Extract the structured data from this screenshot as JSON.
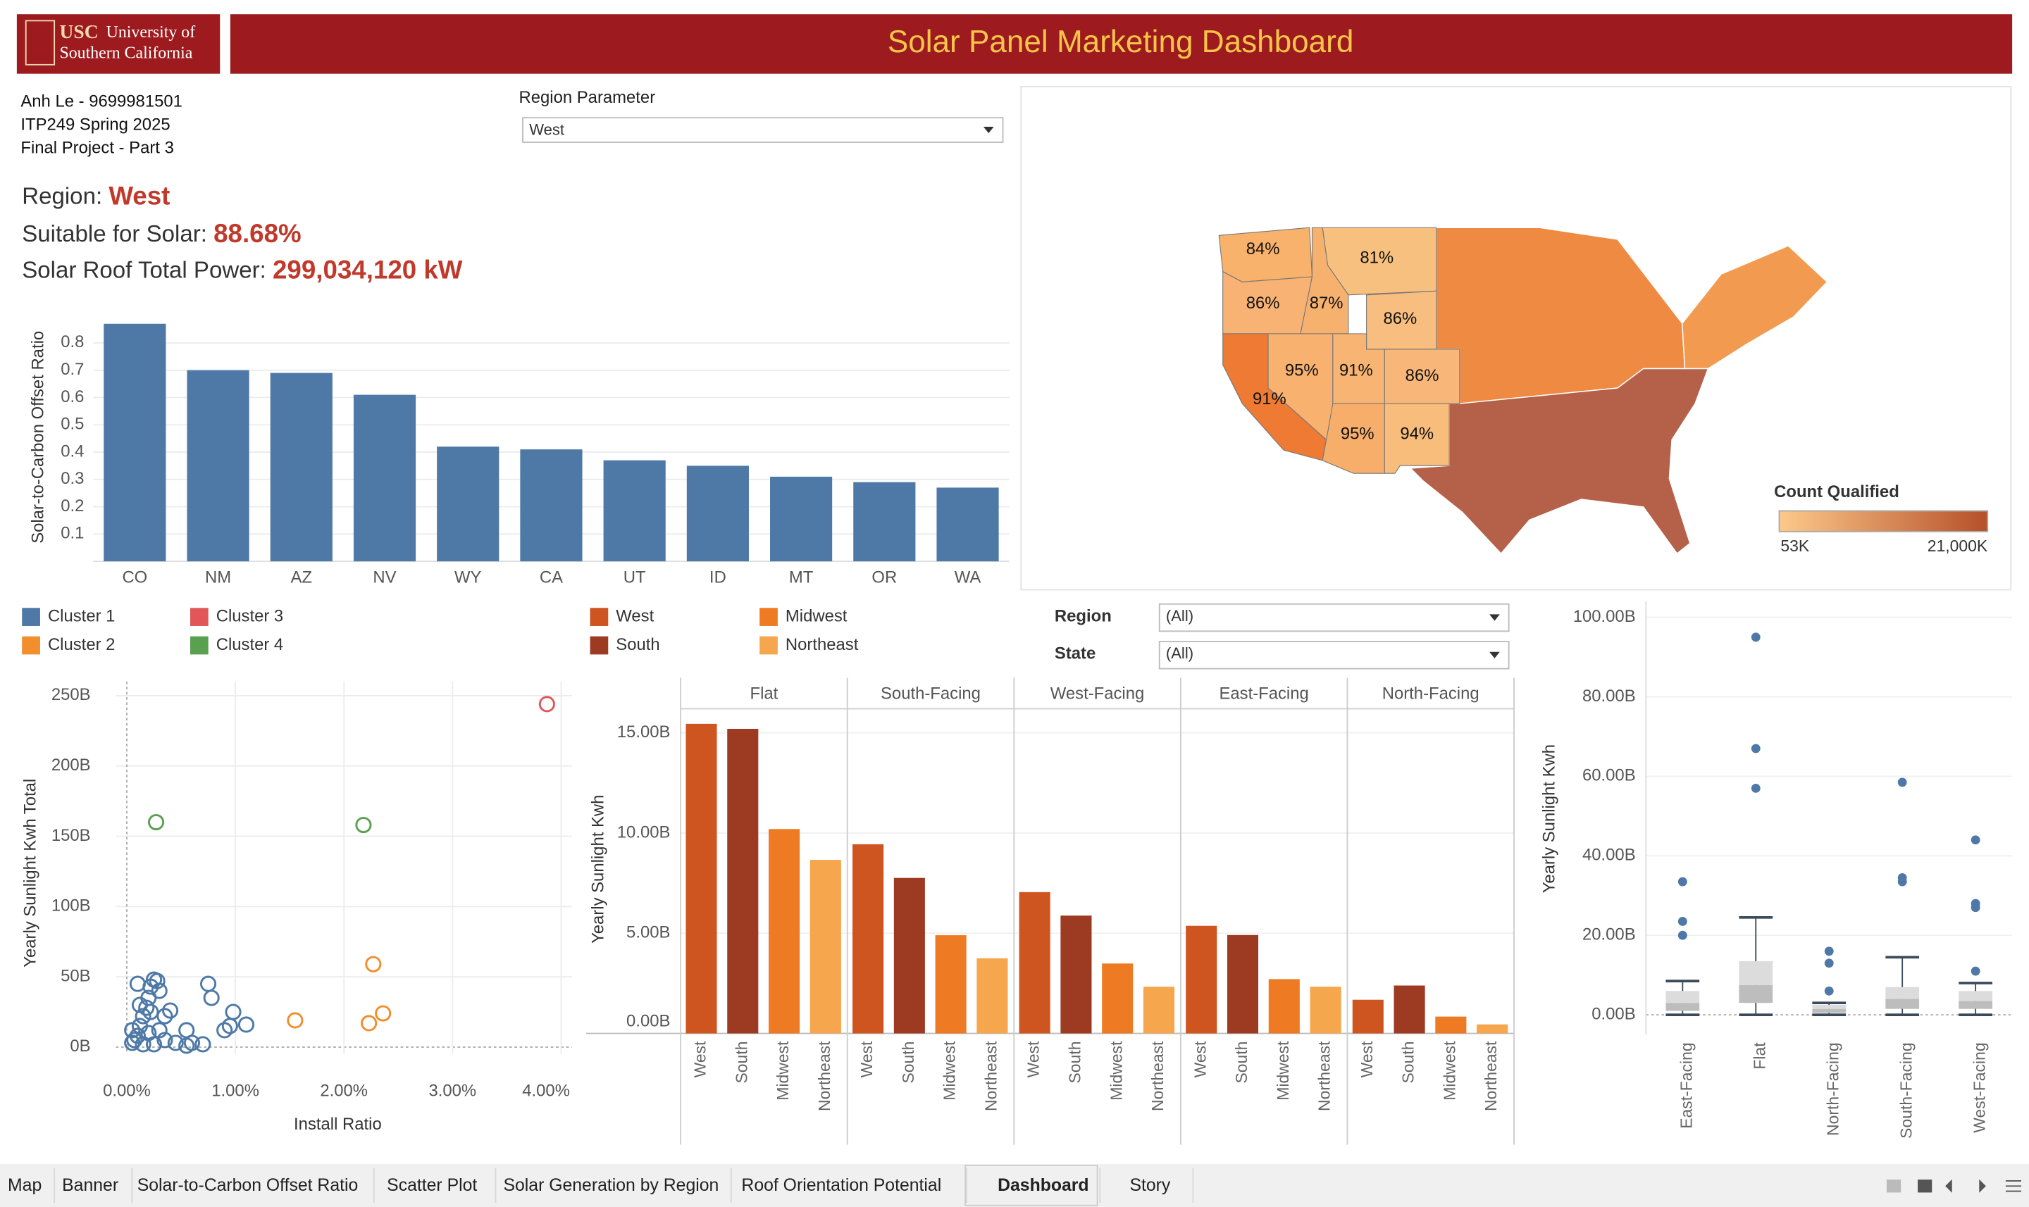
{
  "header": {
    "logo": [
      "USC",
      "University of",
      "Southern California"
    ],
    "title": "Solar Panel Marketing Dashboard"
  },
  "info": [
    "Anh Le - 9699981501",
    "ITP249 Spring 2025",
    "Final Project - Part 3"
  ],
  "parameter": {
    "label": "Region Parameter",
    "value": "West"
  },
  "kpis": [
    {
      "label": "Region:",
      "value": "West"
    },
    {
      "label": "Suitable for Solar:",
      "value": "88.68%"
    },
    {
      "label": "Solar Roof Total Power:",
      "value": "299,034,120 kW"
    }
  ],
  "filters": [
    {
      "label": "Region",
      "value": "(All)"
    },
    {
      "label": "State",
      "value": "(All)"
    }
  ],
  "tabs": [
    "Map",
    "Banner",
    "Solar-to-Carbon Offset Ratio",
    "Scatter Plot",
    "Solar Generation by Region",
    "Roof Orientation Potential",
    "Dashboard",
    "Story"
  ],
  "chart_data": [
    {
      "type": "map",
      "values": [
        84,
        81,
        86,
        87,
        86,
        95,
        91,
        86,
        91,
        95,
        94
      ],
      "value_labels": [
        "84%",
        "81%",
        "86%",
        "87%",
        "86%",
        "95%",
        "91%",
        "86%",
        "91%",
        "95%",
        "94%"
      ],
      "colors": [
        "#f8b26b",
        "#f8c07f",
        "#f8b274",
        "#f7b16e",
        "#f8be7f",
        "#f8b16e",
        "#f8b472",
        "#f8b779",
        "#ee7a33",
        "#f8ae6b",
        "#f8bc7b"
      ],
      "region_colors": [
        "#ee8a42",
        "#f29a50",
        "#b5614a"
      ],
      "legend_title": "Count Qualified",
      "colorlim": [
        {
          "value": 53000,
          "label": "53K"
        },
        {
          "value": 21000000,
          "label": "21,000K"
        }
      ],
      "color_range": [
        "#fdc98a",
        "#b5502a"
      ]
    },
    {
      "type": "bar",
      "y_label": "Solar-to-Carbon Offset Ratio",
      "categories": [
        "CO",
        "NM",
        "AZ",
        "NV",
        "WY",
        "CA",
        "UT",
        "ID",
        "MT",
        "OR",
        "WA"
      ],
      "values": [
        0.87,
        0.7,
        0.69,
        0.61,
        0.42,
        0.41,
        0.37,
        0.35,
        0.31,
        0.29,
        0.27
      ],
      "color": "#4e79a7",
      "ylim": [
        0,
        0.9
      ],
      "yticks": [
        0.1,
        0.2,
        0.3,
        0.4,
        0.5,
        0.6,
        0.7,
        0.8
      ],
      "grid": true
    },
    {
      "type": "scatter",
      "x_label": "Install Ratio",
      "y_label": "Yearly Sunlight Kwh Total",
      "series": [
        {
          "name": "Cluster 1",
          "color": "#4e79a7",
          "x": [
            0.05,
            0.07,
            0.1,
            0.12,
            0.15,
            0.18,
            0.2,
            0.22,
            0.25,
            0.28,
            0.1,
            0.3,
            0.22,
            0.35,
            0.4,
            0.3,
            0.35,
            0.45,
            0.55,
            0.6,
            0.7,
            0.75,
            0.78,
            0.9,
            0.95,
            0.98,
            1.1,
            0.15,
            0.25,
            0.05,
            0.2,
            0.12,
            0.55
          ],
          "values": [
            3,
            5,
            8,
            15,
            22,
            28,
            35,
            43,
            48,
            47,
            45,
            40,
            25,
            22,
            26,
            12,
            5,
            3,
            12,
            3,
            2,
            45,
            35,
            12,
            15,
            25,
            16,
            2,
            2,
            12,
            10,
            30,
            1
          ]
        },
        {
          "name": "Cluster 2",
          "color": "#f28e2b",
          "x": [
            1.55,
            2.27,
            2.36,
            2.23
          ],
          "values": [
            19,
            59,
            24,
            17
          ]
        },
        {
          "name": "Cluster 3",
          "color": "#e15759",
          "x": [
            3.87
          ],
          "values": [
            244
          ]
        },
        {
          "name": "Cluster 4",
          "color": "#59a14f",
          "x": [
            0.27,
            2.18
          ],
          "values": [
            160,
            158
          ]
        }
      ],
      "xlim": [
        -0.1,
        4.1
      ],
      "xticks": [
        {
          "value": 0,
          "label": "0.00%"
        },
        {
          "value": 1,
          "label": "1.00%"
        },
        {
          "value": 2,
          "label": "2.00%"
        },
        {
          "value": 3,
          "label": "3.00%"
        },
        {
          "value": 4,
          "label": "4.00%"
        }
      ],
      "ylim": [
        -5,
        260
      ],
      "yticks": [
        {
          "value": 0,
          "label": "0B"
        },
        {
          "value": 50,
          "label": "50B"
        },
        {
          "value": 100,
          "label": "100B"
        },
        {
          "value": 150,
          "label": "150B"
        },
        {
          "value": 200,
          "label": "200B"
        },
        {
          "value": 250,
          "label": "250B"
        }
      ],
      "grid": true
    },
    {
      "type": "grouped_bar",
      "y_label": "Yearly Sunlight Kwh",
      "categories": [
        "Flat",
        "South-Facing",
        "West-Facing",
        "East-Facing",
        "North-Facing"
      ],
      "series": [
        {
          "name": "West",
          "color": "#cf5520",
          "values": [
            15.45,
            9.44,
            7.05,
            5.37,
            1.68
          ]
        },
        {
          "name": "South",
          "color": "#9c3a22",
          "values": [
            15.2,
            7.76,
            5.88,
            4.91,
            2.39
          ]
        },
        {
          "name": "Midwest",
          "color": "#ee7a24",
          "values": [
            10.2,
            4.9,
            3.49,
            2.71,
            0.84
          ]
        },
        {
          "name": "Northeast",
          "color": "#f6a64c",
          "values": [
            8.66,
            3.75,
            2.33,
            2.33,
            0.45
          ]
        }
      ],
      "ylim": [
        0,
        16.2
      ],
      "yticks": [
        {
          "value": 0,
          "label": "0.00B"
        },
        {
          "value": 5,
          "label": "5.00B"
        },
        {
          "value": 10,
          "label": "10.00B"
        },
        {
          "value": 15,
          "label": "15.00B"
        }
      ],
      "grid": true
    },
    {
      "type": "box",
      "y_label": "Yearly Sunlight Kwh",
      "categories": [
        "East-Facing",
        "Flat",
        "North-Facing",
        "South-Facing",
        "West-Facing"
      ],
      "min": [
        0,
        0,
        0,
        0,
        0
      ],
      "q1": [
        1,
        3,
        0.5,
        1.5,
        1.5
      ],
      "median": [
        3,
        7.5,
        1.5,
        4,
        3.5
      ],
      "q3": [
        6,
        13.5,
        2.5,
        7,
        6
      ],
      "max": [
        8.5,
        24.5,
        3,
        14.5,
        8
      ],
      "outliers": [
        [
          20,
          23.5,
          33.5
        ],
        [
          57,
          67,
          95
        ],
        [
          6,
          13,
          16
        ],
        [
          33.5,
          34.5,
          58.5
        ],
        [
          11,
          27,
          28,
          44
        ]
      ],
      "color": "#4e79a7",
      "ylim": [
        -5,
        104
      ],
      "yticks": [
        {
          "value": 0,
          "label": "0.00B"
        },
        {
          "value": 20,
          "label": "20.00B"
        },
        {
          "value": 40,
          "label": "40.00B"
        },
        {
          "value": 60,
          "label": "60.00B"
        },
        {
          "value": 80,
          "label": "80.00B"
        },
        {
          "value": 100,
          "label": "100.00B"
        }
      ],
      "grid": true
    }
  ]
}
